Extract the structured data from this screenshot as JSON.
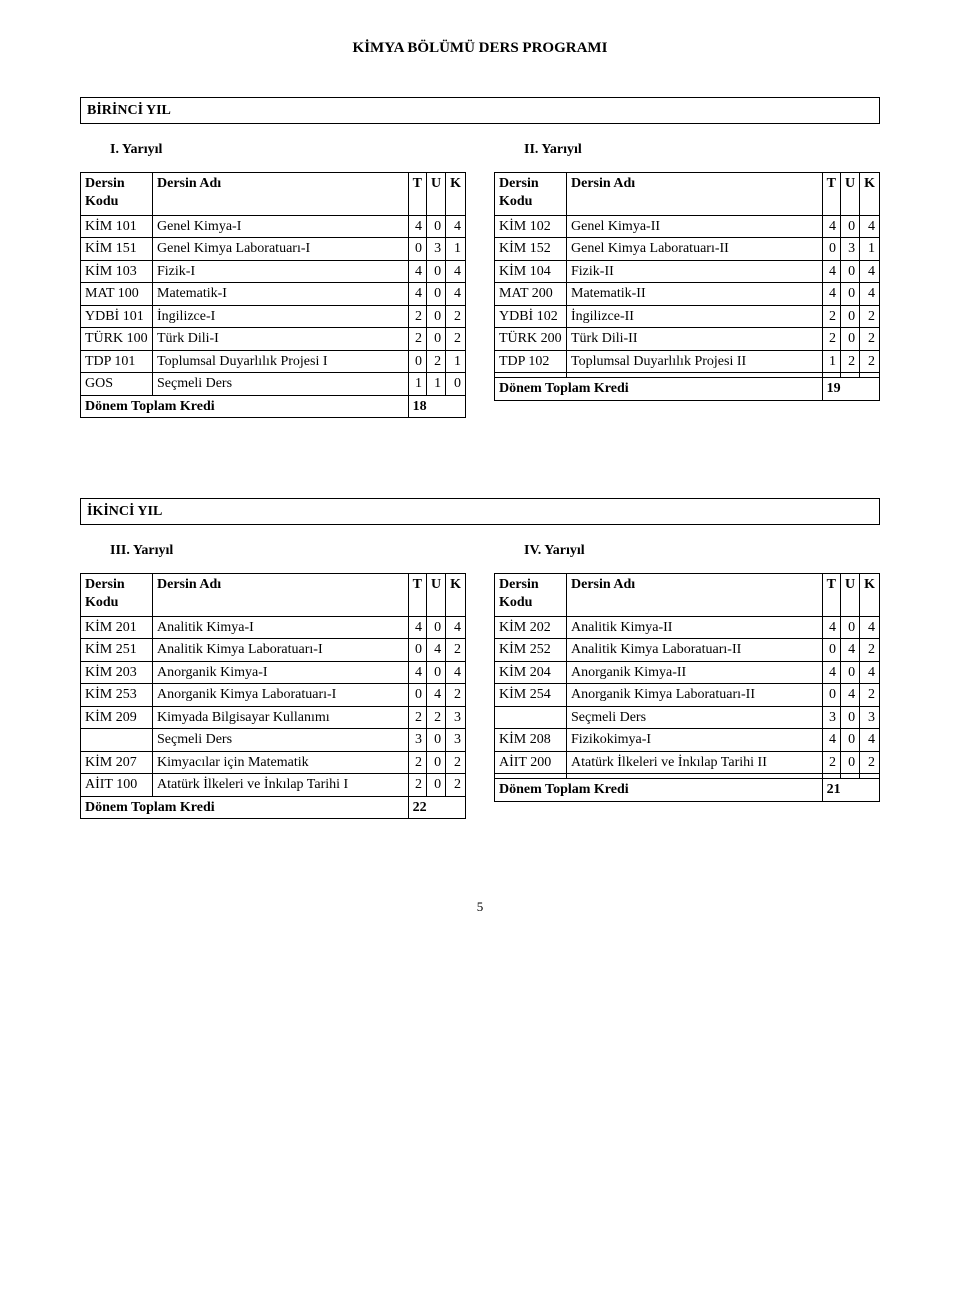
{
  "page_title": "KİMYA BÖLÜMÜ DERS PROGRAMI",
  "page_number": "5",
  "headers": {
    "code": "Dersin Kodu",
    "name": "Dersin Adı",
    "t": "T",
    "u": "U",
    "k": "K",
    "total": "Dönem Toplam Kredi"
  },
  "years": [
    {
      "label": "BİRİNCİ YIL",
      "semesters": [
        {
          "title": "I. Yarıyıl",
          "rows": [
            {
              "code": "KİM 101",
              "name": "Genel Kimya-I",
              "t": "4",
              "u": "0",
              "k": "4"
            },
            {
              "code": "KİM 151",
              "name": "Genel Kimya Laboratuarı-I",
              "t": "0",
              "u": "3",
              "k": "1"
            },
            {
              "code": "KİM 103",
              "name": "Fizik-I",
              "t": "4",
              "u": "0",
              "k": "4"
            },
            {
              "code": "MAT 100",
              "name": "Matematik-I",
              "t": "4",
              "u": "0",
              "k": "4"
            },
            {
              "code": "YDBİ 101",
              "name": "İngilizce-I",
              "t": "2",
              "u": "0",
              "k": "2"
            },
            {
              "code": "TÜRK 100",
              "name": "Türk Dili-I",
              "t": "2",
              "u": "0",
              "k": "2"
            },
            {
              "code": "TDP 101",
              "name": "Toplumsal Duyarlılık Projesi I",
              "t": "0",
              "u": "2",
              "k": "1"
            },
            {
              "code": "GOS",
              "name": "Seçmeli Ders",
              "t": "1",
              "u": "1",
              "k": "0"
            }
          ],
          "total": "18"
        },
        {
          "title": "II. Yarıyıl",
          "rows": [
            {
              "code": "KİM 102",
              "name": "Genel Kimya-II",
              "t": "4",
              "u": "0",
              "k": "4"
            },
            {
              "code": "KİM 152",
              "name": "Genel Kimya Laboratuarı-II",
              "t": "0",
              "u": "3",
              "k": "1"
            },
            {
              "code": "KİM 104",
              "name": "Fizik-II",
              "t": "4",
              "u": "0",
              "k": "4"
            },
            {
              "code": "MAT 200",
              "name": "Matematik-II",
              "t": "4",
              "u": "0",
              "k": "4"
            },
            {
              "code": "YDBİ 102",
              "name": "İngilizce-II",
              "t": "2",
              "u": "0",
              "k": "2"
            },
            {
              "code": "TÜRK 200",
              "name": "Türk Dili-II",
              "t": "2",
              "u": "0",
              "k": "2"
            },
            {
              "code": "TDP 102",
              "name": "Toplumsal Duyarlılık Projesi II",
              "t": "1",
              "u": "2",
              "k": "2"
            },
            {
              "code": "",
              "name": "",
              "t": "",
              "u": "",
              "k": ""
            }
          ],
          "total": "19"
        }
      ]
    },
    {
      "label": "İKİNCİ YIL",
      "semesters": [
        {
          "title": "III. Yarıyıl",
          "rows": [
            {
              "code": "KİM 201",
              "name": "Analitik Kimya-I",
              "t": "4",
              "u": "0",
              "k": "4"
            },
            {
              "code": "KİM 251",
              "name": "Analitik Kimya Laboratuarı-I",
              "t": "0",
              "u": "4",
              "k": "2"
            },
            {
              "code": "KİM 203",
              "name": "Anorganik Kimya-I",
              "t": "4",
              "u": "0",
              "k": "4"
            },
            {
              "code": "KİM 253",
              "name": "Anorganik Kimya Laboratuarı-I",
              "t": "0",
              "u": "4",
              "k": "2"
            },
            {
              "code": "KİM 209",
              "name": "Kimyada Bilgisayar Kullanımı",
              "t": "2",
              "u": "2",
              "k": "3"
            },
            {
              "code": "",
              "name": "Seçmeli Ders",
              "t": "3",
              "u": "0",
              "k": "3"
            },
            {
              "code": "KİM 207",
              "name": "Kimyacılar için Matematik",
              "t": "2",
              "u": "0",
              "k": "2"
            },
            {
              "code": "AİIT 100",
              "name": "Atatürk İlkeleri ve İnkılap Tarihi I",
              "t": "2",
              "u": "0",
              "k": "2"
            }
          ],
          "total": "22"
        },
        {
          "title": "IV. Yarıyıl",
          "rows": [
            {
              "code": "KİM 202",
              "name": "Analitik Kimya-II",
              "t": "4",
              "u": "0",
              "k": "4"
            },
            {
              "code": "KİM 252",
              "name": "Analitik Kimya Laboratuarı-II",
              "t": "0",
              "u": "4",
              "k": "2"
            },
            {
              "code": "KİM 204",
              "name": "Anorganik Kimya-II",
              "t": "4",
              "u": "0",
              "k": "4"
            },
            {
              "code": "KİM 254",
              "name": "Anorganik Kimya Laboratuarı-II",
              "t": "0",
              "u": "4",
              "k": "2"
            },
            {
              "code": "",
              "name": "Seçmeli Ders",
              "t": "3",
              "u": "0",
              "k": "3"
            },
            {
              "code": "KİM 208",
              "name": "Fizikokimya-I",
              "t": "4",
              "u": "0",
              "k": "4"
            },
            {
              "code": "AİIT 200",
              "name": "Atatürk İlkeleri ve İnkılap Tarihi II",
              "t": "2",
              "u": "0",
              "k": "2"
            },
            {
              "code": "",
              "name": "",
              "t": "",
              "u": "",
              "k": ""
            }
          ],
          "total": "21"
        }
      ]
    }
  ]
}
